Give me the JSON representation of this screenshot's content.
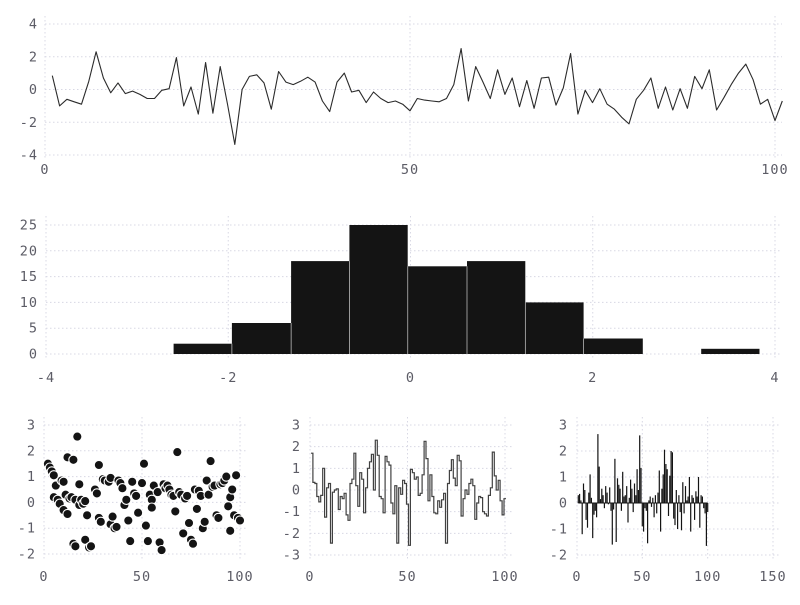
{
  "figure": {
    "title": "",
    "background": "#ffffff",
    "grid_color": "#d8d8e4",
    "tick_label_color": "#5c5c66",
    "ink_color": "#141414",
    "line_color": "#2b2b2b",
    "step_color": "#414141",
    "marker_edge_color": "#ffffff"
  },
  "chart_data": [
    {
      "id": "line",
      "type": "line",
      "title": "",
      "xlabel": "",
      "ylabel": "",
      "x_start": 1,
      "xlim": [
        0,
        101
      ],
      "ylim": [
        -4,
        4
      ],
      "xticks": [
        0,
        50,
        100
      ],
      "yticks": [
        -4,
        -2,
        0,
        2,
        4
      ],
      "grid": true,
      "legend": "none",
      "values": [
        0.85,
        -1.0,
        -0.6,
        -0.75,
        -0.9,
        0.5,
        2.3,
        0.7,
        -0.2,
        0.4,
        -0.25,
        -0.1,
        -0.3,
        -0.55,
        -0.55,
        -0.05,
        0.05,
        1.95,
        -1.0,
        0.15,
        -1.5,
        1.65,
        -1.45,
        1.4,
        -0.9,
        -3.35,
        0.0,
        0.8,
        0.9,
        0.4,
        -1.2,
        1.1,
        0.45,
        0.3,
        0.5,
        0.75,
        0.45,
        -0.7,
        -1.35,
        0.45,
        1.0,
        -0.15,
        -0.05,
        -0.8,
        -0.15,
        -0.55,
        -0.8,
        -0.7,
        -0.9,
        -1.3,
        -0.55,
        -0.65,
        -0.7,
        -0.75,
        -0.55,
        0.3,
        2.5,
        -0.7,
        1.4,
        0.45,
        -0.55,
        1.2,
        -0.3,
        0.7,
        -1.05,
        0.55,
        -1.15,
        0.7,
        0.75,
        -0.95,
        0.1,
        2.2,
        -1.5,
        -0.05,
        -0.8,
        0.05,
        -0.9,
        -1.2,
        -1.7,
        -2.1,
        -0.6,
        -0.05,
        0.7,
        -1.15,
        0.15,
        -1.25,
        0.05,
        -1.15,
        0.8,
        0.05,
        1.2,
        -1.25,
        -0.5,
        0.3,
        1.0,
        1.55,
        0.6,
        -0.9,
        -0.6,
        -1.9,
        -0.7
      ]
    },
    {
      "id": "hist",
      "type": "bar",
      "subtype": "histogram",
      "title": "",
      "xlabel": "",
      "ylabel": "",
      "xlim": [
        -4,
        4
      ],
      "ylim": [
        0,
        26
      ],
      "xticks": [
        -4,
        -2,
        0,
        2,
        4
      ],
      "yticks": [
        0,
        5,
        10,
        15,
        20,
        25
      ],
      "grid": true,
      "legend": "none",
      "bin_edges": [
        -2.6,
        -1.96,
        -1.31,
        -0.67,
        -0.03,
        0.62,
        1.26,
        1.9,
        2.55,
        3.19,
        3.83
      ],
      "counts": [
        2,
        6,
        18,
        25,
        17,
        18,
        10,
        3,
        0,
        1
      ]
    },
    {
      "id": "scatter",
      "type": "scatter",
      "title": "",
      "xlabel": "",
      "ylabel": "",
      "xlim": [
        0,
        104
      ],
      "ylim": [
        -2.3,
        3.2
      ],
      "xticks": [
        0,
        50,
        100
      ],
      "yticks": [
        -2,
        -1,
        0,
        1,
        2,
        3
      ],
      "grid": true,
      "legend": "none",
      "marker_radius": 4.6,
      "points": [
        [
          2,
          1.5
        ],
        [
          3,
          1.35
        ],
        [
          4,
          1.2
        ],
        [
          5,
          1.05
        ],
        [
          5,
          0.2
        ],
        [
          6,
          0.65
        ],
        [
          7,
          0.1
        ],
        [
          8,
          -0.05
        ],
        [
          9,
          0.85
        ],
        [
          10,
          0.8
        ],
        [
          10,
          -0.3
        ],
        [
          11,
          0.3
        ],
        [
          12,
          -0.45
        ],
        [
          12,
          1.75
        ],
        [
          13,
          0.15
        ],
        [
          14,
          0.2
        ],
        [
          15,
          1.65
        ],
        [
          15,
          -1.6
        ],
        [
          16,
          0.1
        ],
        [
          16,
          -1.7
        ],
        [
          17,
          2.55
        ],
        [
          18,
          0.7
        ],
        [
          18,
          -0.1
        ],
        [
          19,
          0.1
        ],
        [
          20,
          -0.05
        ],
        [
          21,
          0.05
        ],
        [
          21,
          -1.45
        ],
        [
          22,
          -0.5
        ],
        [
          23,
          -1.75
        ],
        [
          24,
          -1.7
        ],
        [
          26,
          0.5
        ],
        [
          27,
          0.35
        ],
        [
          28,
          -0.6
        ],
        [
          28,
          1.45
        ],
        [
          29,
          -0.75
        ],
        [
          30,
          0.9
        ],
        [
          31,
          0.85
        ],
        [
          33,
          0.8
        ],
        [
          34,
          0.95
        ],
        [
          34,
          -0.85
        ],
        [
          35,
          -0.55
        ],
        [
          36,
          -1.0
        ],
        [
          37,
          -0.95
        ],
        [
          38,
          0.85
        ],
        [
          39,
          0.75
        ],
        [
          40,
          0.55
        ],
        [
          41,
          -0.1
        ],
        [
          42,
          0.1
        ],
        [
          43,
          -0.7
        ],
        [
          44,
          -1.5
        ],
        [
          45,
          0.8
        ],
        [
          46,
          0.35
        ],
        [
          47,
          0.25
        ],
        [
          48,
          -0.4
        ],
        [
          50,
          0.75
        ],
        [
          51,
          1.5
        ],
        [
          52,
          -0.9
        ],
        [
          53,
          -1.5
        ],
        [
          54,
          0.3
        ],
        [
          55,
          0.1
        ],
        [
          55,
          -0.2
        ],
        [
          56,
          0.65
        ],
        [
          58,
          0.4
        ],
        [
          59,
          -1.55
        ],
        [
          60,
          -1.85
        ],
        [
          61,
          0.7
        ],
        [
          62,
          0.55
        ],
        [
          63,
          0.65
        ],
        [
          64,
          0.5
        ],
        [
          65,
          0.3
        ],
        [
          66,
          0.25
        ],
        [
          67,
          -0.35
        ],
        [
          68,
          1.95
        ],
        [
          69,
          0.4
        ],
        [
          70,
          0.3
        ],
        [
          71,
          -1.2
        ],
        [
          72,
          0.15
        ],
        [
          73,
          0.25
        ],
        [
          74,
          -0.8
        ],
        [
          75,
          -1.45
        ],
        [
          76,
          -1.6
        ],
        [
          77,
          0.5
        ],
        [
          78,
          -0.25
        ],
        [
          79,
          0.45
        ],
        [
          80,
          0.25
        ],
        [
          81,
          -1.0
        ],
        [
          82,
          -0.75
        ],
        [
          83,
          0.85
        ],
        [
          84,
          0.3
        ],
        [
          85,
          1.6
        ],
        [
          86,
          0.6
        ],
        [
          87,
          0.65
        ],
        [
          88,
          -0.5
        ],
        [
          89,
          -0.6
        ],
        [
          90,
          0.7
        ],
        [
          91,
          0.75
        ],
        [
          92,
          0.85
        ],
        [
          93,
          1.0
        ],
        [
          94,
          -0.15
        ],
        [
          95,
          0.2
        ],
        [
          95,
          -1.1
        ],
        [
          96,
          0.5
        ],
        [
          97,
          -0.5
        ],
        [
          98,
          1.05
        ],
        [
          99,
          -0.6
        ],
        [
          100,
          -0.7
        ]
      ]
    },
    {
      "id": "step",
      "type": "line",
      "subtype": "step",
      "title": "",
      "xlabel": "",
      "ylabel": "",
      "x_start": 1,
      "xlim": [
        0,
        104
      ],
      "ylim": [
        -3.3,
        3.3
      ],
      "xticks": [
        0,
        50,
        100
      ],
      "yticks": [
        -3,
        -2,
        -1,
        0,
        1,
        2,
        3
      ],
      "grid": true,
      "legend": "none",
      "values": [
        1.7,
        0.35,
        0.3,
        -0.3,
        -0.55,
        -0.25,
        1.0,
        -1.25,
        0.1,
        0.3,
        -2.45,
        -0.1,
        0.0,
        0.05,
        -0.9,
        -0.3,
        -0.4,
        -0.15,
        -1.15,
        -1.4,
        0.3,
        0.5,
        1.7,
        0.2,
        -0.75,
        0.8,
        0.5,
        -1.05,
        0.1,
        1.0,
        1.3,
        1.65,
        0.0,
        2.3,
        1.6,
        -0.3,
        -0.4,
        -1.05,
        1.55,
        1.3,
        1.15,
        -0.6,
        -1.1,
        0.2,
        -2.45,
        0.1,
        -0.2,
        0.45,
        0.3,
        -0.65,
        -2.55,
        0.95,
        0.8,
        0.5,
        0.6,
        -0.25,
        -0.15,
        0.7,
        2.25,
        1.45,
        -0.5,
        0.7,
        -0.3,
        -1.05,
        -1.1,
        -0.5,
        -0.8,
        -0.45,
        -0.15,
        -2.45,
        0.3,
        0.9,
        1.4,
        0.55,
        0.2,
        1.6,
        1.35,
        -1.2,
        -0.4,
        0.0,
        -0.2,
        0.3,
        0.5,
        0.2,
        -1.35,
        -0.6,
        -0.3,
        -0.35,
        -1.0,
        -1.1,
        -1.2,
        -0.25,
        0.1,
        1.75,
        0.65,
        0.0,
        0.45,
        -0.5,
        -1.15,
        -0.4
      ]
    },
    {
      "id": "stem",
      "type": "bar",
      "title": "",
      "xlabel": "",
      "ylabel": "",
      "x_start": 1,
      "xlim": [
        0,
        150
      ],
      "ylim": [
        -2.3,
        3.2
      ],
      "xticks": [
        0,
        50,
        100,
        150
      ],
      "yticks": [
        -2,
        -1,
        0,
        1,
        2,
        3
      ],
      "grid": true,
      "legend": "none",
      "values": [
        0.3,
        0.35,
        0.1,
        -1.2,
        0.75,
        0.5,
        -0.65,
        -0.95,
        0.4,
        1.1,
        0.2,
        -1.35,
        -0.45,
        -0.3,
        -0.55,
        2.65,
        1.4,
        0.15,
        0.55,
        0.3,
        -0.2,
        0.65,
        0.4,
        -0.05,
        0.6,
        -0.3,
        -1.6,
        -0.25,
        1.7,
        -1.5,
        0.95,
        0.7,
        0.55,
        -0.3,
        1.2,
        0.25,
        0.3,
        0.65,
        -0.75,
        0.2,
        0.9,
        0.55,
        -0.35,
        0.75,
        0.3,
        1.3,
        0.5,
        2.6,
        1.35,
        -0.9,
        -1.1,
        -0.2,
        -0.3,
        -1.55,
        0.1,
        0.25,
        -0.15,
        0.2,
        -0.55,
        0.3,
        -0.4,
        0.4,
        1.25,
        -1.1,
        0.55,
        1.1,
        2.05,
        1.5,
        1.3,
        -0.5,
        1.05,
        2.0,
        1.95,
        -0.6,
        -0.85,
        0.5,
        -1.0,
        0.3,
        -0.35,
        -1.05,
        0.8,
        -0.4,
        0.65,
        0.1,
        0.25,
        1.0,
        -1.1,
        0.3,
        0.2,
        -0.65,
        0.45,
        0.25,
        1.0,
        -0.95,
        0.3,
        0.25,
        -0.2,
        -0.4,
        -1.65,
        -0.35
      ]
    }
  ]
}
